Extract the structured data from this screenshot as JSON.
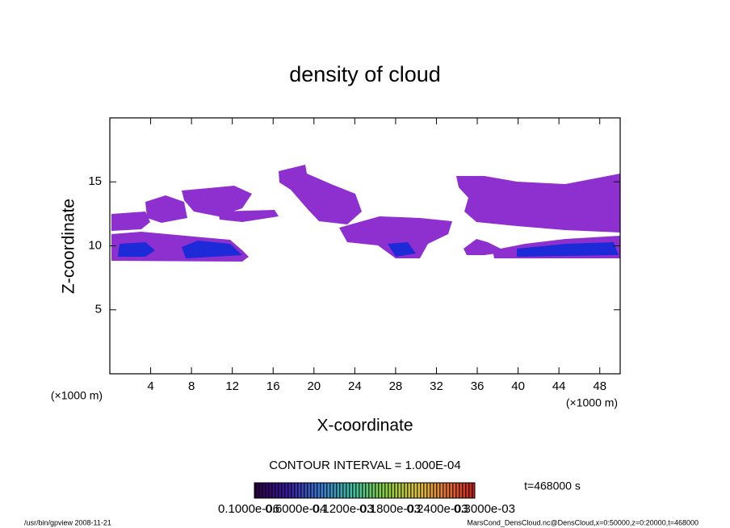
{
  "chart_data": {
    "type": "contour",
    "title": "density of cloud",
    "xlabel": "X-coordinate",
    "ylabel": "Z-coordinate",
    "xunit": "(×1000 m)",
    "yunit": "(×1000 m)",
    "xlim": [
      0,
      50
    ],
    "xticks": [
      4,
      8,
      12,
      16,
      20,
      24,
      28,
      32,
      36,
      40,
      44,
      48
    ],
    "ylim": [
      0,
      20
    ],
    "yticks": [
      5,
      10,
      15
    ],
    "contour_interval": "CONTOUR INTERVAL = 1.000E-04",
    "colorbar_labels": [
      "0.1000e-06",
      "0.6000e-04",
      "0.1200e-03",
      "0.1800e-03",
      "0.2400e-03",
      "0.3000e-03"
    ],
    "time_label": "t=468000 s",
    "footer_left": "/usr/bin/gpview   2008-11-21",
    "footer_right": "MarsCond_DensCloud.nc@DensCloud,x=0:50000,z=0:20000,t=468000"
  }
}
